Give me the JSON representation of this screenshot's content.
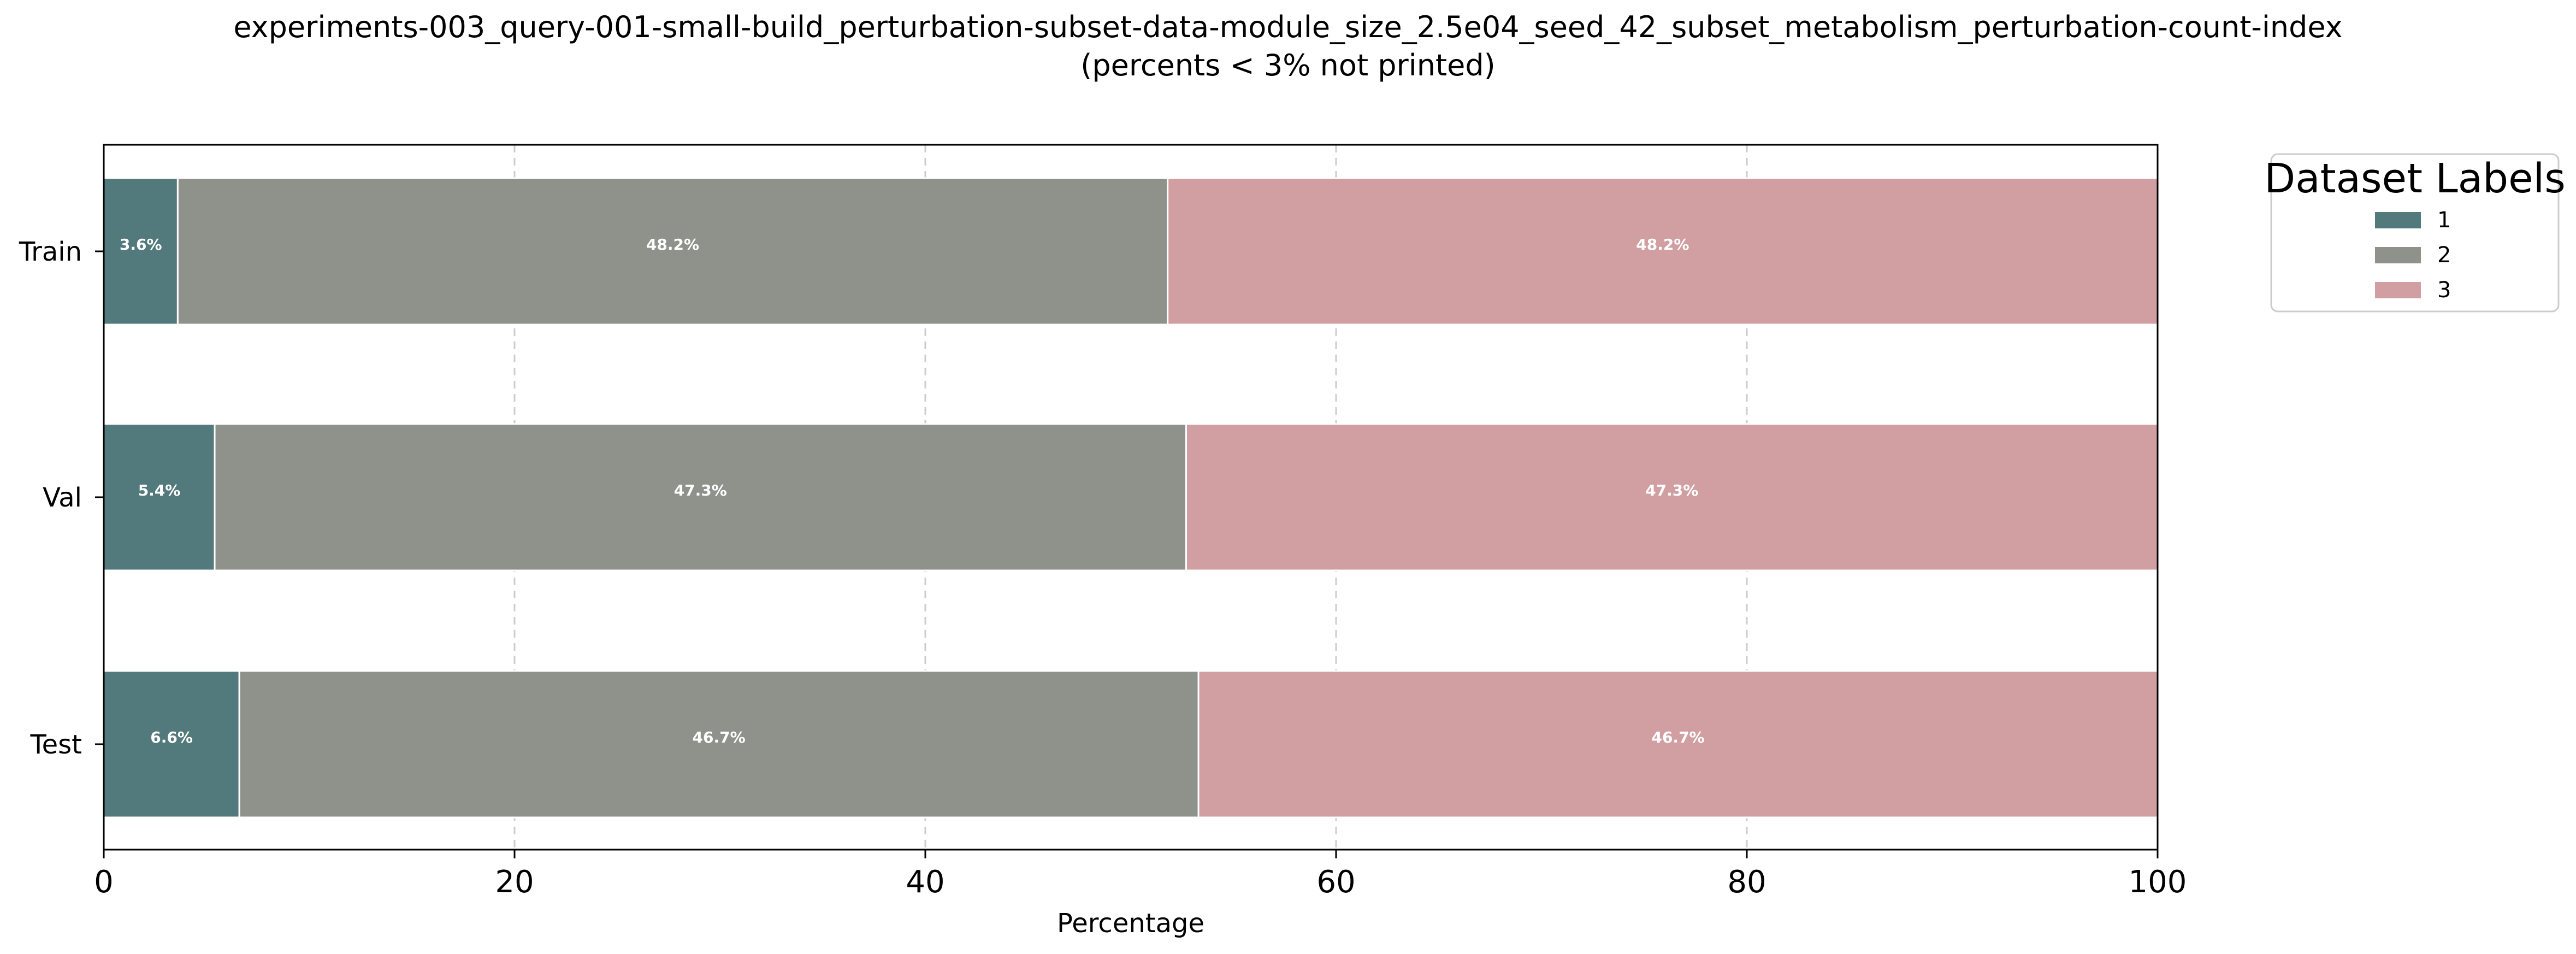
{
  "chart_data": {
    "type": "bar",
    "orientation": "horizontal",
    "stacked": true,
    "title": "experiments-003_query-001-small-build_perturbation-subset-data-module_size_2.5e04_seed_42_subset_metabolism_perturbation-count-index",
    "subtitle": "(percents < 3% not printed)",
    "xlabel": "Percentage",
    "ylabel": "",
    "xlim": [
      0,
      100
    ],
    "xticks": [
      0,
      20,
      40,
      60,
      80,
      100
    ],
    "grid": "x-dashed",
    "categories": [
      "Train",
      "Val",
      "Test"
    ],
    "series": [
      {
        "name": "1",
        "color": "#52797b",
        "values": [
          3.6,
          5.4,
          6.6
        ],
        "labels": [
          "3.6%",
          "5.4%",
          "6.6%"
        ]
      },
      {
        "name": "2",
        "color": "#8f928a",
        "values": [
          48.2,
          47.3,
          46.7
        ],
        "labels": [
          "48.2%",
          "47.3%",
          "46.7%"
        ]
      },
      {
        "name": "3",
        "color": "#d19fa2",
        "values": [
          48.2,
          47.3,
          46.7
        ],
        "labels": [
          "48.2%",
          "47.3%",
          "46.7%"
        ]
      }
    ],
    "legend": {
      "title": "Dataset Labels",
      "placement": "outside-top-right"
    }
  }
}
